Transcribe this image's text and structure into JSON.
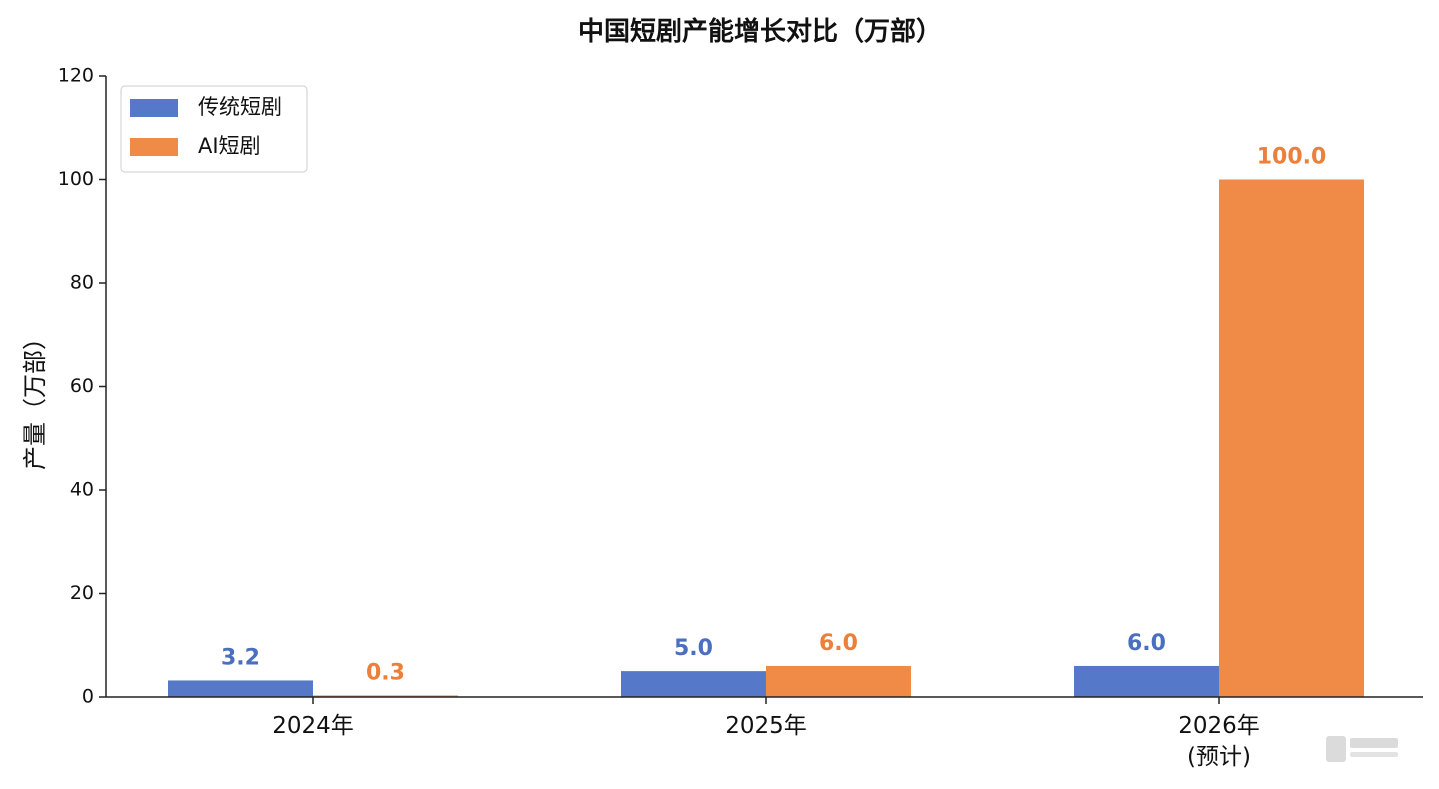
{
  "chart_data": {
    "type": "bar",
    "title": "中国短剧产能增长对比（万部）",
    "xlabel": "",
    "ylabel": "产量（万部）",
    "categories": [
      [
        "2024年"
      ],
      [
        "2025年"
      ],
      [
        "2026年",
        "(预计)"
      ]
    ],
    "series": [
      {
        "name": "传统短剧",
        "color": "#5579c8",
        "values": [
          3.2,
          5.0,
          6.0
        ],
        "labels": [
          "3.2",
          "5.0",
          "6.0"
        ]
      },
      {
        "name": "AI短剧",
        "color": "#ef8a47",
        "values": [
          0.3,
          6.0,
          100.0
        ],
        "labels": [
          "0.3",
          "6.0",
          "100.0"
        ]
      }
    ],
    "ylim": [
      0,
      120
    ],
    "yticks": [
      0,
      20,
      40,
      60,
      80,
      100,
      120
    ],
    "legend": "top-left",
    "grid": false
  },
  "colors": {
    "series_1": "#5579c8",
    "series_2": "#ef8a47",
    "label_1": "#4a6fc0",
    "label_2": "#ec7f3a"
  }
}
